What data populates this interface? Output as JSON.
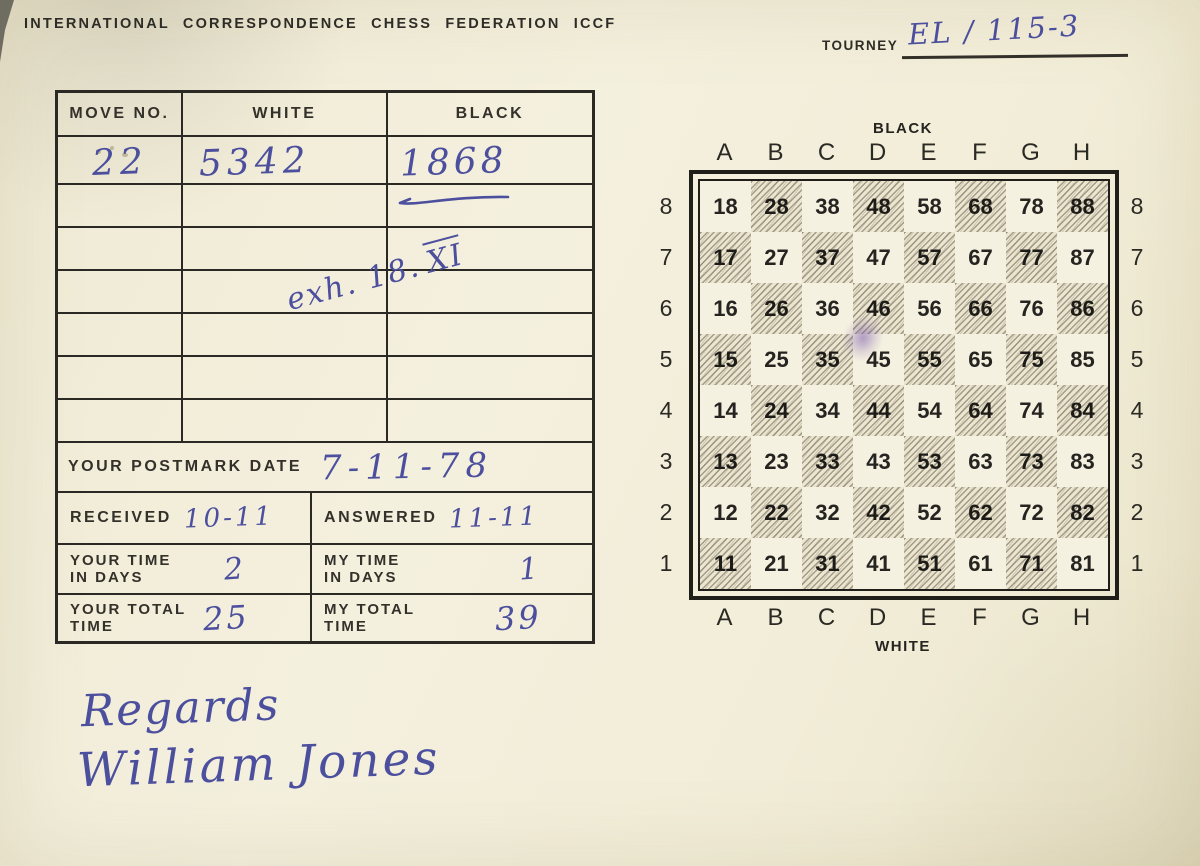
{
  "header": {
    "title": "INTERNATIONAL CORRESPONDENCE CHESS FEDERATION ICCF"
  },
  "tourney": {
    "label": "TOURNEY",
    "value": "EL / 115-3"
  },
  "moves_table": {
    "headers": {
      "move_no": "MOVE NO.",
      "white": "WHITE",
      "black": "BLACK"
    },
    "rows": [
      {
        "no": "22",
        "white": "5342",
        "black": "1868"
      }
    ],
    "empty_row_count": 6,
    "ink_note": {
      "prefix": "exh. 18.",
      "suffix": "XI"
    },
    "postmark": {
      "label": "YOUR POSTMARK DATE",
      "value": "7-11-78"
    },
    "received": {
      "label": "RECEIVED",
      "value": "10-11"
    },
    "answered": {
      "label": "ANSWERED",
      "value": "11-11"
    },
    "your_time": {
      "label_line1": "YOUR TIME",
      "label_line2": "IN DAYS",
      "value": "2"
    },
    "my_time": {
      "label_line1": "MY TIME",
      "label_line2": "IN DAYS",
      "value": "1"
    },
    "your_total": {
      "label_line1": "YOUR TOTAL",
      "label_line2": "TIME",
      "value": "25"
    },
    "my_total": {
      "label_line1": "MY TOTAL",
      "label_line2": "TIME",
      "value": "39"
    }
  },
  "board": {
    "top_label": "BLACK",
    "bottom_label": "WHITE",
    "files": [
      "A",
      "B",
      "C",
      "D",
      "E",
      "F",
      "G",
      "H"
    ],
    "ranks": [
      8,
      7,
      6,
      5,
      4,
      3,
      2,
      1
    ],
    "rows": [
      [
        18,
        28,
        38,
        48,
        58,
        68,
        78,
        88
      ],
      [
        17,
        27,
        37,
        47,
        57,
        67,
        77,
        87
      ],
      [
        16,
        26,
        36,
        46,
        56,
        66,
        76,
        86
      ],
      [
        15,
        25,
        35,
        45,
        55,
        65,
        75,
        85
      ],
      [
        14,
        24,
        34,
        44,
        54,
        64,
        74,
        84
      ],
      [
        13,
        23,
        33,
        43,
        53,
        63,
        73,
        83
      ],
      [
        12,
        22,
        32,
        42,
        52,
        62,
        72,
        82
      ],
      [
        11,
        21,
        31,
        41,
        51,
        61,
        71,
        81
      ]
    ]
  },
  "signature": {
    "line1": "Regards",
    "line2": "William Jones"
  },
  "colors": {
    "paper": "#f2eeda",
    "ink": "#4c4f9d",
    "print": "#2e2c26"
  }
}
